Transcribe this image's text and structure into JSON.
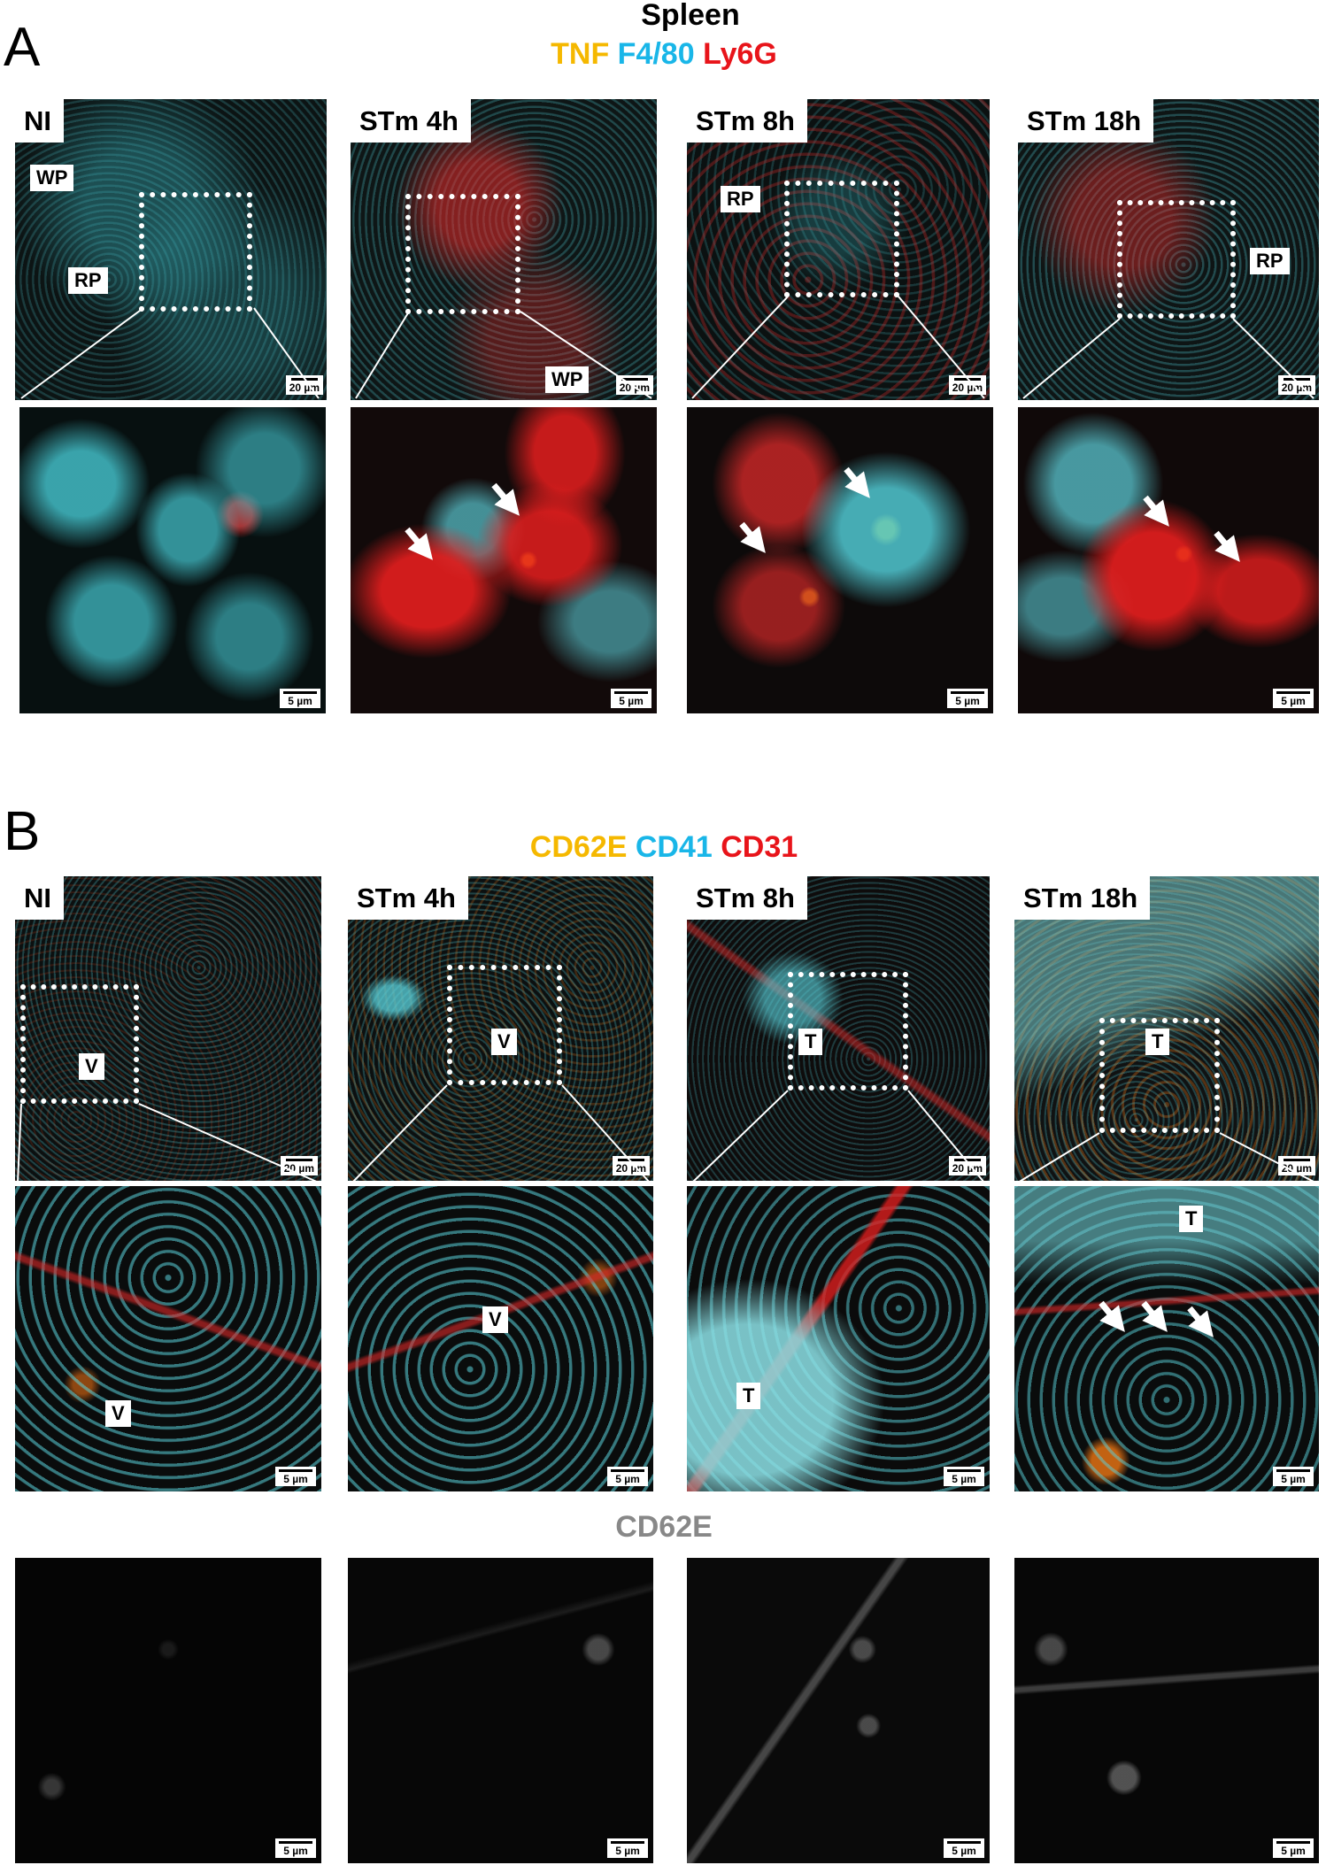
{
  "figure": {
    "panel_a": {
      "letter": "A",
      "title": "Spleen",
      "legend": [
        {
          "text": "TNF",
          "color": "#f5b800"
        },
        {
          "text": "F4/80",
          "color": "#19b6e8"
        },
        {
          "text": "Ly6G",
          "color": "#e8141a"
        }
      ],
      "columns": [
        "NI",
        "STm 4h",
        "STm 8h",
        "STm 18h"
      ],
      "region_labels": {
        "ni_top": [
          "WP",
          "RP"
        ],
        "stm4h_top": [
          "WP"
        ],
        "stm8h_top": [
          "RP"
        ],
        "stm18h_top": [
          "RP"
        ]
      },
      "scale_overview": "20 µm",
      "scale_zoom": "5 µm"
    },
    "panel_b": {
      "letter": "B",
      "legend": [
        {
          "text": "CD62E",
          "color": "#f5b800"
        },
        {
          "text": "CD41",
          "color": "#19b6e8"
        },
        {
          "text": "CD31",
          "color": "#e8141a"
        }
      ],
      "columns": [
        "NI",
        "STm 4h",
        "STm 8h",
        "STm 18h"
      ],
      "region_labels": {
        "ni_top": "V",
        "stm4h_top": "V",
        "stm8h_top": "T",
        "stm18h_top": "T",
        "ni_zoom": "V",
        "stm4h_zoom": "V",
        "stm8h_zoom": "T",
        "stm18h_zoom": "T"
      },
      "grayscale_caption": "CD62E",
      "scale_overview": "20 µm",
      "scale_zoom": "5 µm"
    }
  }
}
